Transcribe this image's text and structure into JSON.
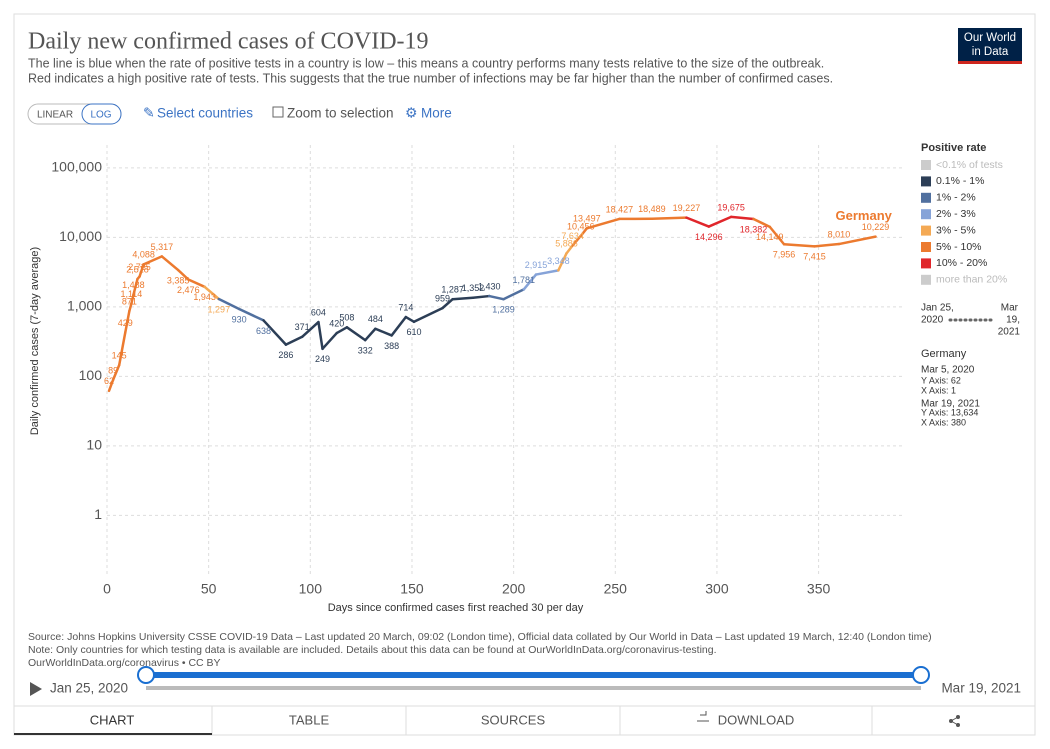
{
  "header": {
    "title": "Daily new confirmed cases of COVID-19",
    "subtitle": [
      "The line is blue when the rate of positive tests in a country is low – this means a country performs many tests relative to the size of the outbreak.",
      "Red indicates a high positive rate of tests. This suggests that the true number of infections may be far higher than the number of confirmed cases."
    ],
    "logo": [
      "Our World",
      "in Data"
    ]
  },
  "controls": {
    "linear": "LINEAR",
    "log": "LOG",
    "select": "Select countries",
    "zoom": "Zoom to selection",
    "more": "More"
  },
  "chart_data": {
    "type": "line",
    "y_label": "Daily confirmed cases (7-day average)",
    "x_label": "Days since confirmed cases first reached 30 per day",
    "log_scale": true,
    "grid": true,
    "xlim": [
      0,
      392
    ],
    "xticks": [
      0,
      50,
      100,
      150,
      200,
      250,
      300,
      350
    ],
    "ylim": [
      0.13,
      213000
    ],
    "yticks": [
      1,
      10,
      100,
      {
        "value": 1000,
        "label": "1,000"
      },
      {
        "value": 10000,
        "label": "10,000"
      },
      {
        "value": 100000,
        "label": "100,000"
      }
    ],
    "legend_title": "Positive rate",
    "bands": [
      {
        "label": "<0.1% of tests",
        "color": "#cccccc"
      },
      {
        "label": "0.1% - 1%",
        "color": "#2c3e56"
      },
      {
        "label": "1% - 2%",
        "color": "#51709f"
      },
      {
        "label": "2% - 3%",
        "color": "#86a3d8"
      },
      {
        "label": "3% - 5%",
        "color": "#f4a954"
      },
      {
        "label": "5% - 10%",
        "color": "#ec7a2f"
      },
      {
        "label": "10% - 20%",
        "color": "#e0262b"
      },
      {
        "label": "more than 20%",
        "color": "#cccccc"
      }
    ],
    "series": [
      {
        "name": "Germany",
        "x": [
          1,
          3,
          6,
          9,
          11,
          12,
          13,
          15,
          16,
          18,
          27,
          35,
          40,
          48,
          55,
          65,
          77,
          88,
          96,
          104,
          106,
          113,
          118,
          127,
          132,
          140,
          147,
          151,
          165,
          170,
          180,
          188,
          195,
          205,
          211,
          222,
          226,
          229,
          233,
          236,
          252,
          268,
          285,
          296,
          307,
          318,
          326,
          333,
          348,
          360,
          378
        ],
        "values": [
          62,
          89,
          145,
          429,
          871,
          1114,
          1488,
          2518,
          2725,
          4088,
          5317,
          3385,
          2476,
          1943,
          1297,
          930,
          638,
          286,
          371,
          604,
          249,
          420,
          508,
          332,
          484,
          388,
          714,
          610,
          959,
          1287,
          1352,
          1430,
          1289,
          1781,
          2915,
          3348,
          5886,
          7634,
          10456,
          13497,
          18427,
          18489,
          19227,
          14296,
          19675,
          18382,
          14149,
          7956,
          7415,
          8010,
          10229
        ],
        "value_labels": [
          "62",
          "89",
          "145",
          "429",
          "871",
          "1,114",
          "1,488",
          "2,518",
          "2,725",
          "4,088",
          "5,317",
          "3,385",
          "2,476",
          "1,943",
          "1,297",
          "930",
          "638",
          "286",
          "371",
          "604",
          "249",
          "420",
          "508",
          "332",
          "484",
          "388",
          "714",
          "610",
          "959",
          "1,287",
          "1,352",
          "1,430",
          "1,289",
          "1,781",
          "2,915",
          "3,348",
          "5,886",
          "7,634",
          "10,456",
          "13,497",
          "18,427",
          "18,489",
          "19,227",
          "14,296",
          "19,675",
          "18,382",
          "14,149",
          "7,956",
          "7,415",
          "8,010",
          "10,229"
        ],
        "bands": [
          5,
          5,
          5,
          5,
          5,
          5,
          5,
          5,
          5,
          5,
          5,
          5,
          5,
          5,
          4,
          2,
          2,
          1,
          1,
          1,
          1,
          1,
          1,
          1,
          1,
          1,
          1,
          1,
          1,
          1,
          1,
          1,
          2,
          2,
          3,
          3,
          4,
          4,
          5,
          5,
          5,
          5,
          5,
          6,
          6,
          6,
          5,
          5,
          5,
          5,
          5
        ]
      }
    ]
  },
  "timeline": {
    "start": "Jan 25,",
    "start2": "2020",
    "end": "Mar",
    "end2": "19,",
    "end3": "2021"
  },
  "tooltip": {
    "country": "Germany",
    "d1": "Mar 5, 2020",
    "y1": "Y Axis: 62",
    "x1": "X Axis: 1",
    "d2": "Mar 19, 2021",
    "y2": "Y Axis: 13,634",
    "x2": "X Axis: 380"
  },
  "footer": {
    "source": [
      "Source: Johns Hopkins University CSSE COVID-19 Data – Last updated 20 March, 09:02 (London time), Official data collated by Our World in Data – Last updated 19 March, 12:40 (London time)",
      "Note: Only countries for which testing data is available are included. Details about this data can be found at OurWorldInData.org/coronavirus-testing.",
      "OurWorldInData.org/coronavirus • CC BY"
    ],
    "start": "Jan 25, 2020",
    "end": "Mar 19, 2021",
    "tabs": [
      "CHART",
      "TABLE",
      "SOURCES",
      "DOWNLOAD"
    ]
  }
}
